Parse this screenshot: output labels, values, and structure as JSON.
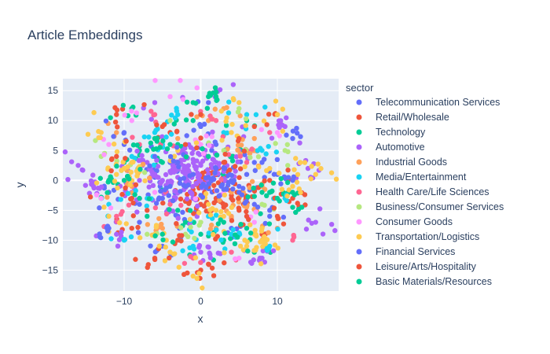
{
  "chart_data": {
    "type": "scatter",
    "title": "Article Embeddings",
    "xlabel": "x",
    "ylabel": "y",
    "xlim": [
      -18,
      18
    ],
    "ylim": [
      -18.5,
      17
    ],
    "xticks": [
      -10,
      0,
      10
    ],
    "yticks": [
      -15,
      -10,
      -5,
      0,
      5,
      10,
      15
    ],
    "grid": true,
    "legend_title": "sector",
    "legend_placement": "right",
    "series": [
      {
        "name": "Telecommunication Services",
        "color": "#636efa",
        "n": 90,
        "values": [
          [
            -2,
            1.5
          ],
          [
            1,
            -0.5
          ],
          [
            -4,
            3
          ],
          [
            3,
            2
          ],
          [
            -1,
            -3
          ],
          [
            5,
            -1
          ],
          [
            -6,
            0.5
          ],
          [
            2,
            6
          ],
          [
            -3,
            -6
          ],
          [
            7,
            3
          ],
          [
            0,
            9
          ],
          [
            -8,
            -4
          ],
          [
            4,
            -8
          ],
          [
            10,
            1
          ],
          [
            -10,
            6
          ],
          [
            1,
            13
          ],
          [
            -5,
            -11
          ],
          [
            9,
            -6
          ],
          [
            -12,
            -2
          ],
          [
            12,
            7
          ]
        ]
      },
      {
        "name": "Retail/Wholesale",
        "color": "#ef553b",
        "n": 130,
        "values": [
          [
            1,
            -1
          ],
          [
            2,
            -3
          ],
          [
            0.5,
            -2
          ],
          [
            3,
            -4.5
          ],
          [
            -1,
            -1.5
          ],
          [
            4,
            -2.5
          ],
          [
            2,
            1
          ],
          [
            0,
            -4
          ],
          [
            5,
            -5
          ],
          [
            -2,
            -3.5
          ],
          [
            3,
            0.5
          ],
          [
            6,
            -3
          ],
          [
            -4,
            8
          ],
          [
            8,
            -9
          ],
          [
            -9,
            -8
          ],
          [
            10,
            11
          ],
          [
            -11,
            11
          ],
          [
            0,
            -15
          ],
          [
            12,
            -3
          ],
          [
            -6,
            -13
          ]
        ]
      },
      {
        "name": "Technology",
        "color": "#00cc96",
        "n": 90,
        "values": [
          [
            -3,
            6
          ],
          [
            -6,
            7
          ],
          [
            -8,
            5
          ],
          [
            -5,
            3
          ],
          [
            -7,
            -6
          ],
          [
            -2,
            -7
          ],
          [
            0,
            -9
          ],
          [
            3,
            -10
          ],
          [
            9,
            -2
          ],
          [
            11,
            -2.5
          ],
          [
            -12,
            0
          ],
          [
            -13,
            -3
          ],
          [
            6,
            10
          ],
          [
            1,
            14
          ],
          [
            12,
            -4.5
          ],
          [
            -10,
            3
          ],
          [
            4,
            4
          ],
          [
            -1,
            10
          ],
          [
            7,
            -12
          ],
          [
            -9,
            12
          ]
        ]
      },
      {
        "name": "Automotive",
        "color": "#ab63fa",
        "n": 260,
        "values": [
          [
            -2,
            2
          ],
          [
            -1,
            1
          ],
          [
            -3,
            0.5
          ],
          [
            0,
            2.5
          ],
          [
            -4,
            1.5
          ],
          [
            -2,
            -0.5
          ],
          [
            -1,
            3.5
          ],
          [
            -5,
            0
          ],
          [
            -3,
            -2
          ],
          [
            1,
            0
          ],
          [
            -6,
            1
          ],
          [
            -2,
            4.5
          ],
          [
            2,
            3
          ],
          [
            3,
            1.5
          ],
          [
            -8,
            0
          ],
          [
            -1,
            -3
          ],
          [
            -4,
            -5
          ],
          [
            5,
            5
          ],
          [
            -7,
            3
          ],
          [
            -9,
            -2
          ],
          [
            -14,
            -1
          ],
          [
            14,
            2
          ],
          [
            -6,
            13
          ],
          [
            8,
            -13
          ],
          [
            2,
            15
          ],
          [
            -11,
            -9
          ],
          [
            11,
            9
          ],
          [
            -16,
            2.5
          ],
          [
            15,
            -7
          ],
          [
            0,
            -12
          ]
        ]
      },
      {
        "name": "Industrial Goods",
        "color": "#ffa15a",
        "n": 70,
        "values": [
          [
            5,
            -3
          ],
          [
            6,
            -4
          ],
          [
            7,
            7
          ],
          [
            -8,
            2
          ],
          [
            4,
            -6
          ],
          [
            -3,
            7
          ],
          [
            6,
            5
          ],
          [
            -9,
            -1
          ],
          [
            2,
            -8
          ],
          [
            8,
            -1
          ],
          [
            1,
            10
          ],
          [
            -5,
            -8
          ],
          [
            10,
            -8
          ],
          [
            -11,
            8
          ],
          [
            3,
            12
          ]
        ]
      },
      {
        "name": "Media/Entertainment",
        "color": "#19d3f3",
        "n": 80,
        "values": [
          [
            -5,
            6
          ],
          [
            -6,
            8
          ],
          [
            -9,
            4
          ],
          [
            -3,
            11
          ],
          [
            4,
            -9
          ],
          [
            -12,
            -4
          ],
          [
            8,
            5
          ],
          [
            1,
            -6
          ],
          [
            -7,
            -3
          ],
          [
            11,
            -3
          ],
          [
            3,
            8
          ],
          [
            -1,
            -11
          ],
          [
            6,
            11
          ],
          [
            -10,
            -10
          ],
          [
            9,
            -11
          ]
        ]
      },
      {
        "name": "Health Care/Life Sciences",
        "color": "#ff6692",
        "n": 40,
        "values": [
          [
            -8,
            6
          ],
          [
            6,
            3
          ],
          [
            -4,
            -4
          ],
          [
            2,
            10
          ],
          [
            -1,
            -13
          ],
          [
            9,
            8
          ],
          [
            -11,
            -6
          ],
          [
            12,
            -10
          ],
          [
            -6,
            11
          ],
          [
            4,
            -12
          ]
        ]
      },
      {
        "name": "Business/Consumer Services",
        "color": "#b6e880",
        "n": 35,
        "values": [
          [
            -13,
            4
          ],
          [
            -10,
            2
          ],
          [
            8,
            -4
          ],
          [
            -2,
            -9
          ],
          [
            3,
            5
          ],
          [
            11,
            5
          ],
          [
            -7,
            -9
          ],
          [
            5,
            12
          ],
          [
            -4,
            10
          ],
          [
            0,
            -7
          ]
        ]
      },
      {
        "name": "Consumer Goods",
        "color": "#ff97ff",
        "n": 35,
        "values": [
          [
            -13,
            -3
          ],
          [
            -4,
            14
          ],
          [
            10,
            8
          ],
          [
            -6,
            -2
          ],
          [
            3,
            -2
          ],
          [
            7,
            -7
          ],
          [
            -9,
            10
          ],
          [
            0,
            6
          ],
          [
            5,
            -13
          ],
          [
            -12,
            6
          ]
        ]
      },
      {
        "name": "Transportation/Logistics",
        "color": "#fecb52",
        "n": 150,
        "values": [
          [
            -10,
            2
          ],
          [
            -9,
            3
          ],
          [
            -11,
            1
          ],
          [
            -8,
            1.5
          ],
          [
            2,
            -5
          ],
          [
            3,
            -6
          ],
          [
            1,
            -4
          ],
          [
            8,
            -8
          ],
          [
            7,
            -9
          ],
          [
            8,
            -10
          ],
          [
            -1,
            -16
          ],
          [
            15,
            1
          ],
          [
            -4,
            -12
          ],
          [
            12,
            -1
          ],
          [
            5,
            13
          ],
          [
            -12,
            -6
          ],
          [
            9,
            2
          ],
          [
            -3,
            5
          ],
          [
            6,
            -11
          ],
          [
            13,
            3
          ],
          [
            -13,
            8
          ],
          [
            10,
            11
          ],
          [
            -6,
            -9
          ],
          [
            4,
            8
          ]
        ]
      },
      {
        "name": "Financial Services",
        "color": "#636efa",
        "n": 90,
        "values": [
          [
            1,
            0.5
          ],
          [
            0,
            -2.5
          ],
          [
            -2,
            -1
          ],
          [
            3,
            -1.5
          ],
          [
            -1,
            1
          ],
          [
            2,
            2
          ],
          [
            4,
            0
          ],
          [
            -3,
            3
          ],
          [
            5,
            -2
          ],
          [
            -4,
            -1
          ],
          [
            6,
            1
          ],
          [
            -5,
            -3
          ],
          [
            7,
            -4
          ],
          [
            -6,
            4
          ],
          [
            8,
            3
          ],
          [
            -8,
            -7
          ],
          [
            9,
            -5
          ],
          [
            -10,
            8
          ],
          [
            12,
            0
          ],
          [
            -12,
            -8
          ]
        ]
      },
      {
        "name": "Leisure/Arts/Hospitality",
        "color": "#ef553b",
        "n": 60,
        "values": [
          [
            -5,
            9
          ],
          [
            4,
            -3
          ],
          [
            -2,
            6
          ],
          [
            6,
            -6
          ],
          [
            -7,
            -5
          ],
          [
            3,
            3
          ],
          [
            9,
            0
          ],
          [
            -9,
            -3
          ],
          [
            1,
            -14
          ],
          [
            -3,
            -10
          ],
          [
            7,
            9
          ],
          [
            10,
            -6
          ],
          [
            -11,
            4
          ],
          [
            5,
            7
          ],
          [
            0,
            11
          ]
        ]
      },
      {
        "name": "Basic Materials/Resources",
        "color": "#00cc96",
        "n": 60,
        "values": [
          [
            -6,
            7
          ],
          [
            -7,
            5
          ],
          [
            -4,
            6
          ],
          [
            2,
            14
          ],
          [
            -3,
            -5
          ],
          [
            8,
            -2
          ],
          [
            10,
            -3
          ],
          [
            12,
            -2
          ],
          [
            -10,
            0
          ],
          [
            3,
            -7
          ],
          [
            -1,
            13
          ],
          [
            -8,
            -3
          ],
          [
            6,
            -8
          ],
          [
            -5,
            -9
          ],
          [
            1,
            4
          ]
        ]
      }
    ]
  }
}
